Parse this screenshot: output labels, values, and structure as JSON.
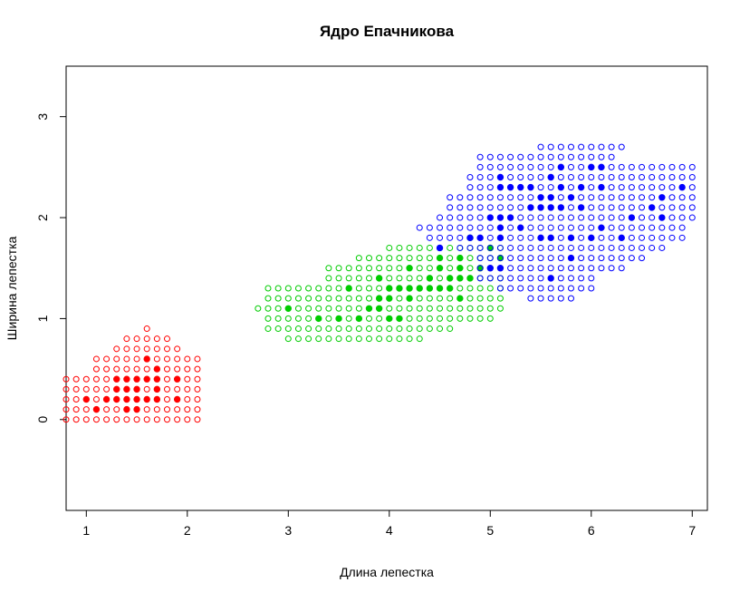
{
  "chart_data": {
    "type": "scatter",
    "title": "Ядро Епачникова",
    "xlabel": "Длина лепестка",
    "ylabel": "Ширина лепестка",
    "xlim": [
      0.8,
      7.15
    ],
    "ylim": [
      -0.9,
      3.5
    ],
    "xticks": [
      1,
      2,
      3,
      4,
      5,
      6,
      7
    ],
    "yticks": [
      0,
      1,
      2,
      3
    ],
    "grid": false,
    "legend": "none",
    "series": [
      {
        "color": "#ff0000",
        "grid_points_x_range": [
          0.8,
          2.1
        ],
        "grid_points_y_range": [
          0.0,
          0.9
        ],
        "step": 0.1,
        "grid_rows": [
          {
            "y": 0.0,
            "x_from": 0.8,
            "x_to": 2.1
          },
          {
            "y": 0.1,
            "x_from": 0.8,
            "x_to": 2.1
          },
          {
            "y": 0.2,
            "x_from": 0.8,
            "x_to": 2.1
          },
          {
            "y": 0.3,
            "x_from": 0.8,
            "x_to": 2.1
          },
          {
            "y": 0.4,
            "x_from": 0.8,
            "x_to": 2.1
          },
          {
            "y": 0.5,
            "x_from": 1.1,
            "x_to": 2.1
          },
          {
            "y": 0.6,
            "x_from": 1.1,
            "x_to": 2.1
          },
          {
            "y": 0.7,
            "x_from": 1.3,
            "x_to": 1.9
          },
          {
            "y": 0.8,
            "x_from": 1.4,
            "x_to": 1.8
          },
          {
            "y": 0.9,
            "x_from": 1.6,
            "x_to": 1.6
          }
        ],
        "observations": [
          [
            1.0,
            0.2
          ],
          [
            1.1,
            0.1
          ],
          [
            1.2,
            0.2
          ],
          [
            1.3,
            0.2
          ],
          [
            1.3,
            0.3
          ],
          [
            1.3,
            0.4
          ],
          [
            1.4,
            0.1
          ],
          [
            1.4,
            0.2
          ],
          [
            1.4,
            0.3
          ],
          [
            1.4,
            0.4
          ],
          [
            1.5,
            0.1
          ],
          [
            1.5,
            0.2
          ],
          [
            1.5,
            0.3
          ],
          [
            1.5,
            0.4
          ],
          [
            1.6,
            0.2
          ],
          [
            1.6,
            0.4
          ],
          [
            1.6,
            0.6
          ],
          [
            1.7,
            0.2
          ],
          [
            1.7,
            0.3
          ],
          [
            1.7,
            0.4
          ],
          [
            1.7,
            0.5
          ],
          [
            1.9,
            0.2
          ],
          [
            1.9,
            0.4
          ]
        ]
      },
      {
        "color": "#00cc00",
        "grid_rows": [
          {
            "y": 0.8,
            "x_from": 3.0,
            "x_to": 4.3
          },
          {
            "y": 0.9,
            "x_from": 2.8,
            "x_to": 4.6
          },
          {
            "y": 1.0,
            "x_from": 2.8,
            "x_to": 5.0
          },
          {
            "y": 1.1,
            "x_from": 2.7,
            "x_to": 5.1
          },
          {
            "y": 1.2,
            "x_from": 2.8,
            "x_to": 5.1
          },
          {
            "y": 1.3,
            "x_from": 2.8,
            "x_to": 5.1
          },
          {
            "y": 1.4,
            "x_from": 3.4,
            "x_to": 5.1
          },
          {
            "y": 1.5,
            "x_from": 3.4,
            "x_to": 5.1
          },
          {
            "y": 1.6,
            "x_from": 3.7,
            "x_to": 5.1
          },
          {
            "y": 1.7,
            "x_from": 4.0,
            "x_to": 5.1
          }
        ],
        "observations": [
          [
            3.0,
            1.1
          ],
          [
            3.3,
            1.0
          ],
          [
            3.5,
            1.0
          ],
          [
            3.6,
            1.3
          ],
          [
            3.7,
            1.0
          ],
          [
            3.8,
            1.1
          ],
          [
            3.9,
            1.1
          ],
          [
            3.9,
            1.2
          ],
          [
            3.9,
            1.4
          ],
          [
            4.0,
            1.0
          ],
          [
            4.0,
            1.2
          ],
          [
            4.0,
            1.3
          ],
          [
            4.1,
            1.0
          ],
          [
            4.1,
            1.3
          ],
          [
            4.2,
            1.2
          ],
          [
            4.2,
            1.3
          ],
          [
            4.2,
            1.5
          ],
          [
            4.3,
            1.3
          ],
          [
            4.4,
            1.3
          ],
          [
            4.4,
            1.4
          ],
          [
            4.5,
            1.3
          ],
          [
            4.5,
            1.5
          ],
          [
            4.5,
            1.6
          ],
          [
            4.6,
            1.3
          ],
          [
            4.6,
            1.4
          ],
          [
            4.7,
            1.2
          ],
          [
            4.7,
            1.4
          ],
          [
            4.7,
            1.5
          ],
          [
            4.7,
            1.6
          ],
          [
            4.8,
            1.4
          ],
          [
            4.8,
            1.8
          ],
          [
            4.9,
            1.5
          ],
          [
            5.0,
            1.7
          ],
          [
            5.1,
            1.6
          ]
        ]
      },
      {
        "color": "#0000ff",
        "grid_rows": [
          {
            "y": 1.2,
            "x_from": 5.4,
            "x_to": 5.8
          },
          {
            "y": 1.3,
            "x_from": 5.1,
            "x_to": 6.0
          },
          {
            "y": 1.4,
            "x_from": 4.9,
            "x_to": 6.0
          },
          {
            "y": 1.5,
            "x_from": 4.9,
            "x_to": 6.3
          },
          {
            "y": 1.6,
            "x_from": 4.9,
            "x_to": 6.5
          },
          {
            "y": 1.7,
            "x_from": 4.7,
            "x_to": 6.7
          },
          {
            "y": 1.8,
            "x_from": 4.4,
            "x_to": 6.9
          },
          {
            "y": 1.9,
            "x_from": 4.3,
            "x_to": 6.9
          },
          {
            "y": 2.0,
            "x_from": 4.5,
            "x_to": 7.0
          },
          {
            "y": 2.1,
            "x_from": 4.6,
            "x_to": 7.0
          },
          {
            "y": 2.2,
            "x_from": 4.6,
            "x_to": 7.0
          },
          {
            "y": 2.3,
            "x_from": 4.8,
            "x_to": 7.0
          },
          {
            "y": 2.4,
            "x_from": 4.8,
            "x_to": 7.0
          },
          {
            "y": 2.5,
            "x_from": 4.9,
            "x_to": 7.0
          },
          {
            "y": 2.6,
            "x_from": 4.9,
            "x_to": 6.2
          },
          {
            "y": 2.7,
            "x_from": 5.5,
            "x_to": 6.3
          }
        ],
        "observations": [
          [
            4.5,
            1.7
          ],
          [
            4.8,
            1.8
          ],
          [
            4.9,
            1.8
          ],
          [
            5.0,
            1.5
          ],
          [
            5.0,
            2.0
          ],
          [
            5.1,
            1.5
          ],
          [
            5.1,
            1.8
          ],
          [
            5.1,
            1.9
          ],
          [
            5.1,
            2.0
          ],
          [
            5.1,
            2.3
          ],
          [
            5.1,
            2.4
          ],
          [
            5.2,
            2.0
          ],
          [
            5.2,
            2.3
          ],
          [
            5.3,
            1.9
          ],
          [
            5.3,
            2.3
          ],
          [
            5.4,
            2.1
          ],
          [
            5.4,
            2.3
          ],
          [
            5.5,
            1.8
          ],
          [
            5.5,
            2.1
          ],
          [
            5.5,
            2.2
          ],
          [
            5.6,
            1.4
          ],
          [
            5.6,
            1.8
          ],
          [
            5.6,
            2.1
          ],
          [
            5.6,
            2.2
          ],
          [
            5.6,
            2.4
          ],
          [
            5.7,
            2.1
          ],
          [
            5.7,
            2.3
          ],
          [
            5.7,
            2.5
          ],
          [
            5.8,
            1.6
          ],
          [
            5.8,
            1.8
          ],
          [
            5.8,
            2.2
          ],
          [
            5.9,
            2.1
          ],
          [
            5.9,
            2.3
          ],
          [
            6.0,
            1.8
          ],
          [
            6.0,
            2.5
          ],
          [
            6.1,
            1.9
          ],
          [
            6.1,
            2.3
          ],
          [
            6.1,
            2.5
          ],
          [
            6.3,
            1.8
          ],
          [
            6.4,
            2.0
          ],
          [
            6.6,
            2.1
          ],
          [
            6.7,
            2.0
          ],
          [
            6.7,
            2.2
          ],
          [
            6.9,
            2.3
          ]
        ]
      }
    ]
  }
}
